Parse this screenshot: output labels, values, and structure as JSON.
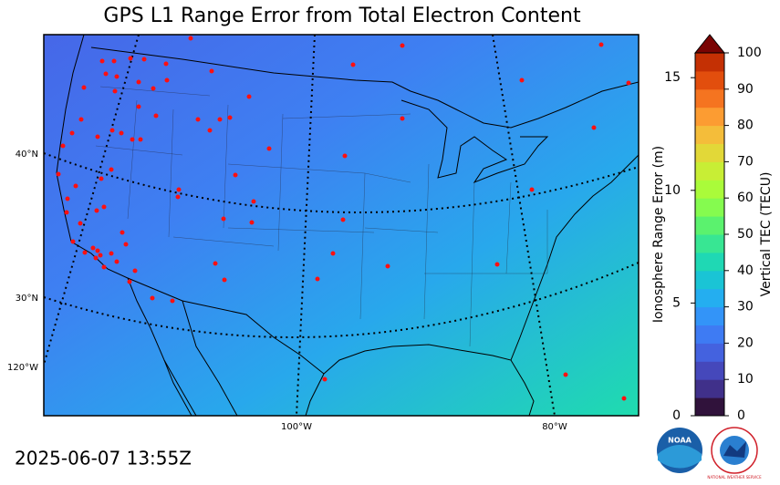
{
  "title": "GPS L1 Range Error from Total Electron Content",
  "timestamp": "2025-06-07 13:55Z",
  "map": {
    "lat_labels": [
      "40°N",
      "30°N"
    ],
    "lon_labels": [
      "120°W",
      "100°W",
      "80°W"
    ]
  },
  "colorbar": {
    "left_label": "Ionosphere Range Error (m)",
    "left_lim": [
      0,
      16.1
    ],
    "left_ticks": [
      0,
      5,
      10,
      15
    ],
    "right_label": "Vertical TEC (TECU)",
    "right_lim": [
      0,
      100
    ],
    "right_ticks": [
      0,
      10,
      20,
      30,
      40,
      50,
      60,
      70,
      80,
      90,
      100
    ],
    "colors": [
      "#30123b",
      "#40308a",
      "#4548bb",
      "#4462df",
      "#3e7bf3",
      "#3394f8",
      "#24aef0",
      "#1ac4d5",
      "#1fd8b4",
      "#38e693",
      "#5bf26e",
      "#85fb4f",
      "#aafb3a",
      "#c8ee35",
      "#e2d838",
      "#f4bd3a",
      "#fc9c32",
      "#f57420",
      "#e24e0d",
      "#c43004"
    ],
    "extend_color": "#7a0403"
  },
  "logos": {
    "noaa": "NOAA",
    "nws": "NATIONAL WEATHER SERVICE"
  }
}
